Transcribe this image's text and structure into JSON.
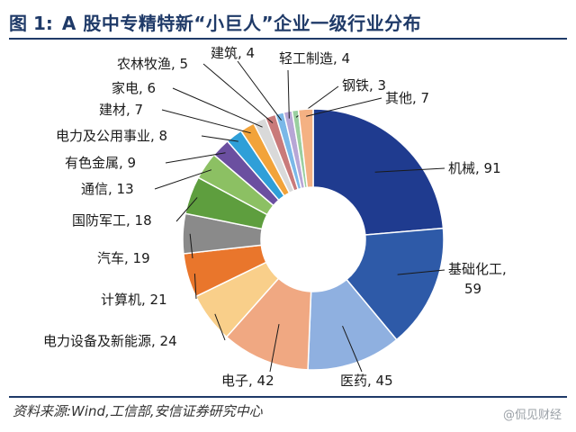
{
  "figure": {
    "number": "图 1:",
    "title": "A 股中专精特新“小巨人”企业一级行业分布"
  },
  "source": "资料来源:Wind,工信部,安信证券研究中心",
  "watermark": "@侃见财经",
  "chart_data": {
    "type": "pie",
    "title": "A 股中专精特新“小巨人”企业一级行业分布",
    "slices": [
      {
        "label": "机械, 91",
        "name": "机械",
        "value": 91,
        "color": "#1f3b8f"
      },
      {
        "label": "基础化工,\n59",
        "name": "基础化工",
        "value": 59,
        "color": "#2e5aa8"
      },
      {
        "label": "医药, 45",
        "name": "医药",
        "value": 45,
        "color": "#8fb0e0"
      },
      {
        "label": "电子, 42",
        "name": "电子",
        "value": 42,
        "color": "#f0a882"
      },
      {
        "label": "电力设备及新能源, 24",
        "name": "电力设备及新能源",
        "value": 24,
        "color": "#f9cf8a"
      },
      {
        "label": "计算机, 21",
        "name": "计算机",
        "value": 21,
        "color": "#e9762c"
      },
      {
        "label": "汽车, 19",
        "name": "汽车",
        "value": 19,
        "color": "#8a8a8a"
      },
      {
        "label": "国防军工, 18",
        "name": "国防军工",
        "value": 18,
        "color": "#5e9e3e"
      },
      {
        "label": "通信, 13",
        "name": "通信",
        "value": 13,
        "color": "#8cc063"
      },
      {
        "label": "有色金属, 9",
        "name": "有色金属",
        "value": 9,
        "color": "#6b4fa0"
      },
      {
        "label": "电力及公用事业, 8",
        "name": "电力及公用事业",
        "value": 8,
        "color": "#2f9fd8"
      },
      {
        "label": "建材, 7",
        "name": "建材",
        "value": 7,
        "color": "#f2a33a"
      },
      {
        "label": "家电, 6",
        "name": "家电",
        "value": 6,
        "color": "#d9d9d9"
      },
      {
        "label": "农林牧渔, 5",
        "name": "农林牧渔",
        "value": 5,
        "color": "#c97a7a"
      },
      {
        "label": "建筑, 4",
        "name": "建筑",
        "value": 4,
        "color": "#7bb8e8"
      },
      {
        "label": "轻工制造, 4",
        "name": "轻工制造",
        "value": 4,
        "color": "#b7a6d6"
      },
      {
        "label": "钢铁, 3",
        "name": "钢铁",
        "value": 3,
        "color": "#9acfa0"
      },
      {
        "label": "其他, 7",
        "name": "其他",
        "value": 7,
        "color": "#f4b183"
      }
    ]
  }
}
